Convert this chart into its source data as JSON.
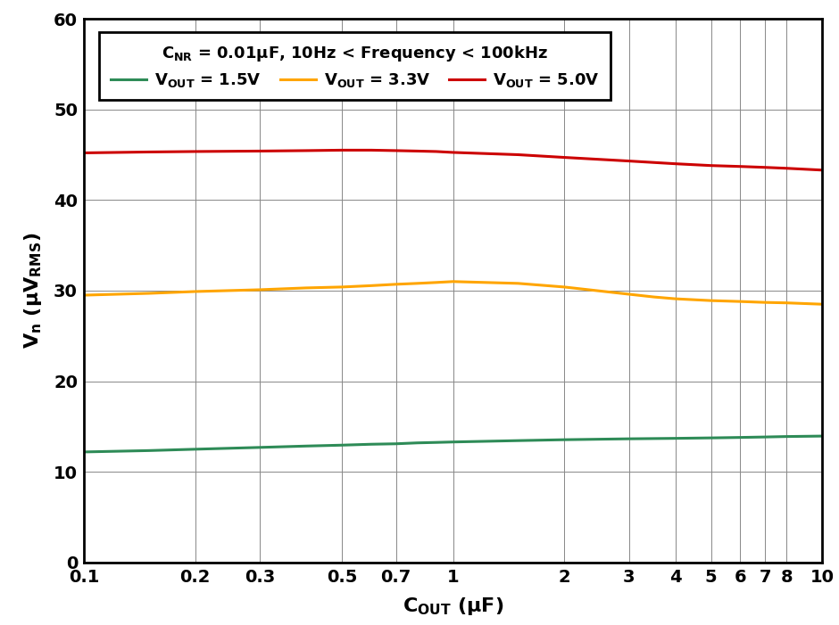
{
  "xlabel": "C$_\\mathregular{OUT}$ (μF)",
  "ylabel": "V$_\\mathregular{n}$ (μV$_\\mathregular{RMS}$)",
  "legend_title": "C$_\\mathregular{NR}$ = 0.01μF, 10Hz < Frequency < 100kHz",
  "xlim_log": [
    0.1,
    10
  ],
  "ylim": [
    0,
    60
  ],
  "yticks": [
    0,
    10,
    20,
    30,
    40,
    50,
    60
  ],
  "xtick_labels": [
    "0.1",
    "0.2",
    "0.3",
    "0.5",
    "0.7",
    "1",
    "2",
    "3",
    "4",
    "5",
    "6",
    "7",
    "8",
    "10"
  ],
  "xtick_vals": [
    0.1,
    0.2,
    0.3,
    0.5,
    0.7,
    1.0,
    2.0,
    3.0,
    4.0,
    5.0,
    6.0,
    7.0,
    8.0,
    10.0
  ],
  "line_1_5V": {
    "color": "#2e8b57",
    "label": "V$_\\mathregular{OUT}$ = 1.5V",
    "x": [
      0.1,
      0.15,
      0.2,
      0.3,
      0.4,
      0.5,
      0.6,
      0.7,
      0.8,
      0.9,
      1.0,
      1.5,
      2.0,
      3.0,
      4.0,
      5.0,
      6.0,
      7.0,
      8.0,
      10.0
    ],
    "y": [
      12.2,
      12.35,
      12.5,
      12.7,
      12.85,
      12.95,
      13.05,
      13.1,
      13.2,
      13.25,
      13.3,
      13.45,
      13.55,
      13.65,
      13.7,
      13.75,
      13.8,
      13.85,
      13.9,
      13.95
    ]
  },
  "line_3_3V": {
    "color": "#ffa500",
    "label": "V$_\\mathregular{OUT}$ = 3.3V",
    "x": [
      0.1,
      0.15,
      0.2,
      0.3,
      0.4,
      0.5,
      0.6,
      0.7,
      0.8,
      0.9,
      1.0,
      1.5,
      2.0,
      3.0,
      3.5,
      4.0,
      5.0,
      6.0,
      7.0,
      8.0,
      10.0
    ],
    "y": [
      29.5,
      29.7,
      29.9,
      30.1,
      30.3,
      30.4,
      30.55,
      30.7,
      30.8,
      30.9,
      31.0,
      30.8,
      30.4,
      29.6,
      29.3,
      29.1,
      28.9,
      28.8,
      28.7,
      28.65,
      28.5
    ]
  },
  "line_5_0V": {
    "color": "#cc0000",
    "label": "V$_\\mathregular{OUT}$ = 5.0V",
    "x": [
      0.1,
      0.15,
      0.2,
      0.3,
      0.4,
      0.5,
      0.6,
      0.7,
      0.8,
      0.9,
      1.0,
      1.5,
      2.0,
      3.0,
      4.0,
      5.0,
      6.0,
      7.0,
      8.0,
      10.0
    ],
    "y": [
      45.2,
      45.3,
      45.35,
      45.4,
      45.45,
      45.5,
      45.5,
      45.45,
      45.4,
      45.35,
      45.25,
      45.0,
      44.7,
      44.3,
      44.0,
      43.8,
      43.7,
      43.6,
      43.5,
      43.3
    ]
  },
  "linewidth": 2.2,
  "background_color": "#ffffff",
  "grid_color": "#888888",
  "tick_fontsize": 14,
  "label_fontsize": 16,
  "legend_title_fontsize": 13,
  "legend_entry_fontsize": 13
}
